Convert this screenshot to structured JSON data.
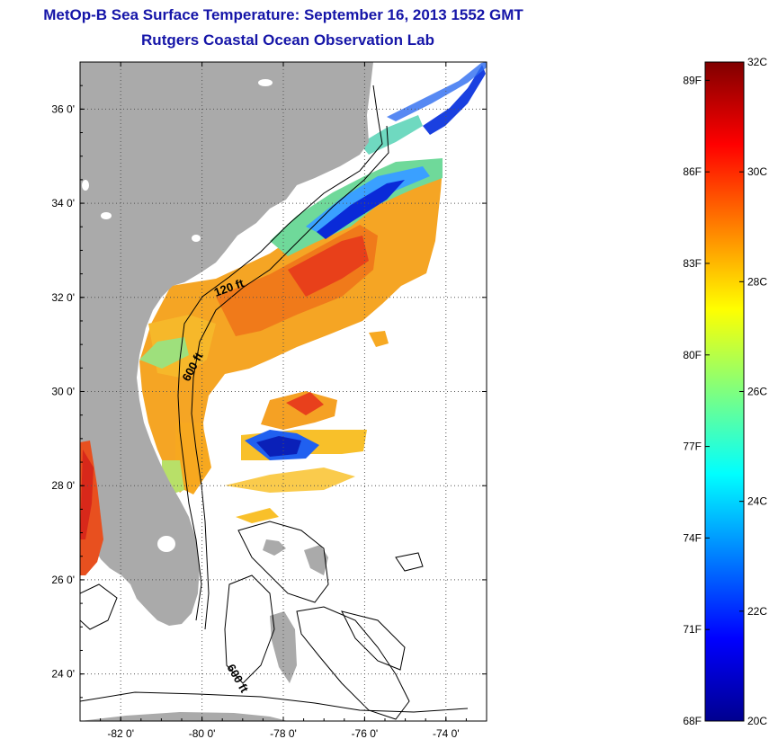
{
  "header": {
    "title": "MetOp-B Sea Surface Temperature:  September 16, 2013 1552 GMT",
    "subtitle": "Rutgers Coastal Ocean Observation Lab"
  },
  "map": {
    "lon_range": [
      -83,
      -73
    ],
    "lat_range": [
      23,
      37
    ],
    "lat_ticks": [
      {
        "value": 24,
        "label": "24 0'"
      },
      {
        "value": 26,
        "label": "26 0'"
      },
      {
        "value": 28,
        "label": "28 0'"
      },
      {
        "value": 30,
        "label": "30 0'"
      },
      {
        "value": 32,
        "label": "32 0'"
      },
      {
        "value": 34,
        "label": "34 0'"
      },
      {
        "value": 36,
        "label": "36 0'"
      }
    ],
    "lon_ticks": [
      {
        "value": -82,
        "label": "-82 0'"
      },
      {
        "value": -80,
        "label": "-80 0'"
      },
      {
        "value": -78,
        "label": "-78 0'"
      },
      {
        "value": -76,
        "label": "-76 0'"
      },
      {
        "value": -74,
        "label": "-74 0'"
      }
    ],
    "isobath_labels": [
      "120 ft",
      "600 ft",
      "600 ft"
    ],
    "colors": {
      "land": "#aaaaaa",
      "grid": "#555555"
    }
  },
  "colorbar": {
    "min_c": 20,
    "max_c": 32,
    "celsius_labels": [
      "32C",
      "30C",
      "28C",
      "26C",
      "24C",
      "22C",
      "20C"
    ],
    "fahrenheit_labels": [
      "89F",
      "86F",
      "83F",
      "80F",
      "77F",
      "74F",
      "71F",
      "68F"
    ],
    "colormap": "jet"
  }
}
